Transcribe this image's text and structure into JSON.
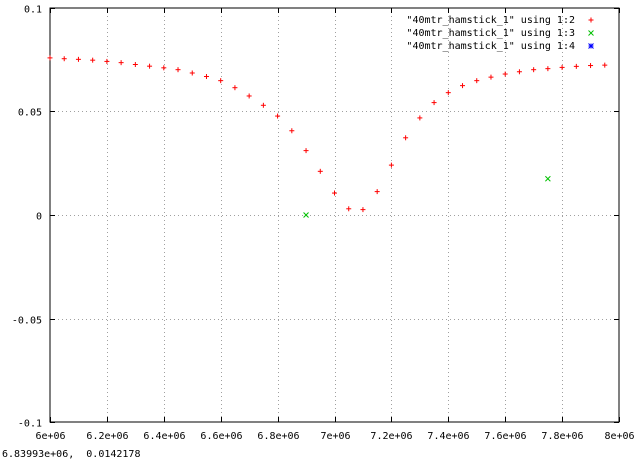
{
  "status_readout": "6.83993e+06,  0.0142178",
  "colors": {
    "series1": "#ff0000",
    "series2": "#00c000",
    "series3": "#0000ff",
    "grid": "#a0a0a0"
  },
  "chart_data": {
    "type": "scatter",
    "title": "",
    "xlabel": "",
    "ylabel": "",
    "xlim": [
      6000000,
      8000000
    ],
    "ylim": [
      -0.1,
      0.1
    ],
    "grid": true,
    "legend_position": "top-right",
    "x_ticks": [
      6000000,
      6200000,
      6400000,
      6600000,
      6800000,
      7000000,
      7200000,
      7400000,
      7600000,
      7800000,
      8000000
    ],
    "x_tick_labels": [
      "6e+06",
      "6.2e+06",
      "6.4e+06",
      "6.6e+06",
      "6.8e+06",
      "7e+06",
      "7.2e+06",
      "7.4e+06",
      "7.6e+06",
      "7.8e+06",
      "8e+06"
    ],
    "y_ticks": [
      -0.1,
      -0.05,
      0,
      0.05,
      0.1
    ],
    "y_tick_labels": [
      "-0.1",
      "-0.05",
      "0",
      "0.05",
      "0.1"
    ],
    "series": [
      {
        "name": "\"40mtr_hamstick_1\" using 1:2",
        "marker": "plus",
        "color": "#ff0000",
        "x": [
          6000000,
          6050000,
          6100000,
          6150000,
          6200000,
          6250000,
          6300000,
          6350000,
          6400000,
          6450000,
          6500000,
          6550000,
          6600000,
          6650000,
          6700000,
          6750000,
          6800000,
          6850000,
          6900000,
          6950000,
          7000000,
          7050000,
          7100000,
          7150000,
          7200000,
          7250000,
          7300000,
          7350000,
          7400000,
          7450000,
          7500000,
          7550000,
          7600000,
          7650000,
          7700000,
          7750000,
          7800000,
          7850000,
          7900000,
          7950000
        ],
        "y": [
          0.0759,
          0.0755,
          0.0752,
          0.0748,
          0.0742,
          0.0736,
          0.0727,
          0.0719,
          0.0711,
          0.0702,
          0.0686,
          0.0669,
          0.0649,
          0.0615,
          0.0575,
          0.053,
          0.0478,
          0.0407,
          0.0311,
          0.0211,
          0.0106,
          0.003,
          0.0026,
          0.0113,
          0.0241,
          0.0373,
          0.0469,
          0.0543,
          0.0591,
          0.0625,
          0.0649,
          0.0666,
          0.0681,
          0.0692,
          0.0702,
          0.0707,
          0.0713,
          0.0718,
          0.0722,
          0.0724
        ]
      },
      {
        "name": "\"40mtr_hamstick_1\" using 1:3",
        "marker": "cross",
        "color": "#00c000",
        "x": [
          6900000,
          7750000
        ],
        "y": [
          0.0,
          0.0175
        ]
      },
      {
        "name": "\"40mtr_hamstick_1\" using 1:4",
        "marker": "star",
        "color": "#0000ff",
        "x": [],
        "y": []
      }
    ]
  }
}
